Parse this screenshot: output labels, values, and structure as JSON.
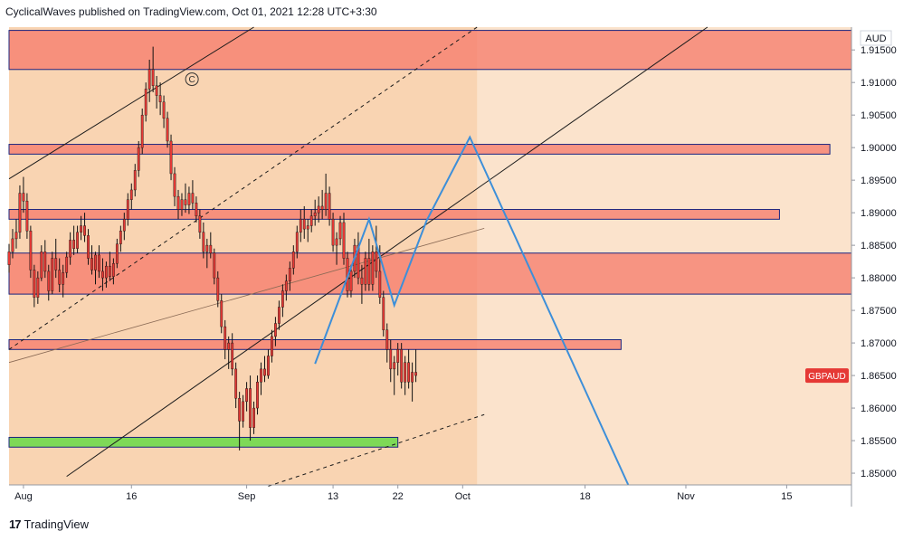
{
  "header": {
    "text": "CyclicalWaves published on TradingView.com, Oct 01, 2021 12:28 UTC+3:30"
  },
  "footer": {
    "brand": "TradingView",
    "logo_glyph": "17"
  },
  "chart_data": {
    "type": "candlestick",
    "symbol": "GBPAUD",
    "currency": "AUD",
    "y_ticks": [
      "1.91500",
      "1.91000",
      "1.90500",
      "1.90000",
      "1.89500",
      "1.89000",
      "1.88500",
      "1.88000",
      "1.87500",
      "1.87000",
      "1.86500",
      "1.86000",
      "1.85500",
      "1.85000"
    ],
    "ylim": [
      1.8482,
      1.9185
    ],
    "x_ticks": [
      {
        "label": "Aug",
        "day": 0
      },
      {
        "label": "16",
        "day": 15
      },
      {
        "label": "Sep",
        "day": 31
      },
      {
        "label": "13",
        "day": 43
      },
      {
        "label": "22",
        "day": 52
      },
      {
        "label": "Oct",
        "day": 61
      },
      {
        "label": "18",
        "day": 78
      },
      {
        "label": "Nov",
        "day": 92
      },
      {
        "label": "15",
        "day": 106
      }
    ],
    "day_range": [
      -2,
      115
    ],
    "colors": {
      "background": "#fbe3cc",
      "projection_area": "#f7c89d",
      "zone_red": "#f57a6a",
      "zone_border": "#1a237e",
      "support_green": "#7ed957",
      "pattern_blue": "#3d8fd9",
      "candle": "#e53935",
      "wick": "#111111",
      "label_bg": "#e53935"
    },
    "zones": [
      {
        "y1": 1.912,
        "y2": 1.918,
        "d1": -2,
        "d2": 115
      },
      {
        "y1": 1.899,
        "y2": 1.9005,
        "d1": -2,
        "d2": 112
      },
      {
        "y1": 1.889,
        "y2": 1.8905,
        "d1": -2,
        "d2": 105
      },
      {
        "y1": 1.8775,
        "y2": 1.8838,
        "d1": -2,
        "d2": 115
      },
      {
        "y1": 1.869,
        "y2": 1.8705,
        "d1": -2,
        "d2": 83
      }
    ],
    "support": {
      "y1": 1.854,
      "y2": 1.8555,
      "d1": -2,
      "d2": 52
    },
    "channel_lines": [
      {
        "d1": -2,
        "y1": 1.8952,
        "d2": 32,
        "y2": 1.9185,
        "dash": false
      },
      {
        "d1": 6,
        "y1": 1.8495,
        "d2": 95,
        "y2": 1.9185,
        "dash": false
      },
      {
        "d1": -2,
        "y1": 1.869,
        "d2": 63,
        "y2": 1.9185,
        "dash": true
      },
      {
        "d1": 34,
        "y1": 1.848,
        "d2": 64,
        "y2": 1.859,
        "dash": true
      },
      {
        "d1": -2,
        "y1": 1.867,
        "d2": 64,
        "y2": 1.8876,
        "dash": false,
        "thin": true
      }
    ],
    "pattern_path": [
      {
        "day": 40.5,
        "y": 1.8668
      },
      {
        "day": 48,
        "y": 1.889
      },
      {
        "day": 51.5,
        "y": 1.8758
      },
      {
        "day": 56,
        "y": 1.8888
      },
      {
        "day": 62,
        "y": 1.9016
      },
      {
        "day": 84,
        "y": 1.8482
      }
    ],
    "wave_label": {
      "text": "C",
      "day": 23.4,
      "y": 1.9105
    },
    "close": 1.865,
    "ohlc": [
      [
        -2,
        1.882,
        1.8852,
        1.8808,
        1.884
      ],
      [
        -1.5,
        1.884,
        1.8875,
        1.883,
        1.886
      ],
      [
        -1,
        1.886,
        1.889,
        1.8845,
        1.887
      ],
      [
        -0.5,
        1.887,
        1.8942,
        1.886,
        1.893
      ],
      [
        0,
        1.893,
        1.8955,
        1.89,
        1.8918
      ],
      [
        0.5,
        1.8918,
        1.893,
        1.886,
        1.8872
      ],
      [
        1,
        1.8872,
        1.888,
        1.88,
        1.8812
      ],
      [
        1.5,
        1.8812,
        1.882,
        1.8755,
        1.877
      ],
      [
        2,
        1.877,
        1.881,
        1.876,
        1.88
      ],
      [
        2.5,
        1.88,
        1.885,
        1.8795,
        1.884
      ],
      [
        3,
        1.884,
        1.8858,
        1.88,
        1.881
      ],
      [
        3.5,
        1.881,
        1.882,
        1.8765,
        1.878
      ],
      [
        4,
        1.878,
        1.884,
        1.8775,
        1.883
      ],
      [
        4.5,
        1.883,
        1.886,
        1.88,
        1.8812
      ],
      [
        5,
        1.8812,
        1.883,
        1.8778,
        1.879
      ],
      [
        5.5,
        1.879,
        1.882,
        1.877,
        1.8808
      ],
      [
        6,
        1.8808,
        1.884,
        1.88,
        1.8832
      ],
      [
        6.5,
        1.8832,
        1.887,
        1.882,
        1.8858
      ],
      [
        7,
        1.8858,
        1.888,
        1.8835,
        1.8845
      ],
      [
        7.5,
        1.8845,
        1.888,
        1.8838,
        1.887
      ],
      [
        8,
        1.887,
        1.8895,
        1.8858,
        1.888
      ],
      [
        8.5,
        1.888,
        1.89,
        1.8855,
        1.8865
      ],
      [
        9,
        1.8865,
        1.8875,
        1.882,
        1.883
      ],
      [
        9.5,
        1.883,
        1.885,
        1.8805,
        1.8812
      ],
      [
        10,
        1.8812,
        1.884,
        1.879,
        1.8835
      ],
      [
        10.5,
        1.8835,
        1.885,
        1.88,
        1.881
      ],
      [
        11,
        1.881,
        1.883,
        1.878,
        1.88
      ],
      [
        11.5,
        1.88,
        1.8825,
        1.8785,
        1.8818
      ],
      [
        12,
        1.8818,
        1.884,
        1.8795,
        1.8802
      ],
      [
        12.5,
        1.8802,
        1.883,
        1.879,
        1.8822
      ],
      [
        13,
        1.8822,
        1.886,
        1.8815,
        1.8852
      ],
      [
        13.5,
        1.8852,
        1.888,
        1.884,
        1.8872
      ],
      [
        14,
        1.8872,
        1.89,
        1.8858,
        1.889
      ],
      [
        14.5,
        1.889,
        1.893,
        1.888,
        1.892
      ],
      [
        15,
        1.892,
        1.8945,
        1.8905,
        1.8935
      ],
      [
        15.5,
        1.8935,
        1.8975,
        1.8925,
        1.8965
      ],
      [
        16,
        1.8965,
        1.901,
        1.8955,
        1.9
      ],
      [
        16.5,
        1.9,
        1.906,
        1.899,
        1.905
      ],
      [
        17,
        1.905,
        1.91,
        1.904,
        1.909
      ],
      [
        17.5,
        1.909,
        1.9135,
        1.907,
        1.912
      ],
      [
        18,
        1.912,
        1.9155,
        1.9085,
        1.9095
      ],
      [
        18.5,
        1.9095,
        1.911,
        1.906,
        1.908
      ],
      [
        19,
        1.908,
        1.91,
        1.905,
        1.907
      ],
      [
        19.5,
        1.907,
        1.908,
        1.903,
        1.9045
      ],
      [
        20,
        1.9045,
        1.9055,
        1.9,
        1.901
      ],
      [
        20.5,
        1.901,
        1.902,
        1.895,
        1.896
      ],
      [
        21,
        1.896,
        1.897,
        1.891,
        1.8925
      ],
      [
        21.5,
        1.8925,
        1.8935,
        1.889,
        1.8905
      ],
      [
        22,
        1.8905,
        1.893,
        1.8895,
        1.892
      ],
      [
        22.5,
        1.892,
        1.8945,
        1.89,
        1.8912
      ],
      [
        23,
        1.8912,
        1.894,
        1.8898,
        1.893
      ],
      [
        23.5,
        1.893,
        1.895,
        1.8905,
        1.8915
      ],
      [
        24,
        1.8915,
        1.8925,
        1.8885,
        1.8895
      ],
      [
        24.5,
        1.8895,
        1.8905,
        1.886,
        1.887
      ],
      [
        25,
        1.887,
        1.8885,
        1.883,
        1.884
      ],
      [
        25.5,
        1.884,
        1.886,
        1.8815,
        1.885
      ],
      [
        26,
        1.885,
        1.887,
        1.883,
        1.8838
      ],
      [
        26.5,
        1.8838,
        1.8845,
        1.879,
        1.88
      ],
      [
        27,
        1.88,
        1.881,
        1.8755,
        1.8765
      ],
      [
        27.5,
        1.8765,
        1.8775,
        1.8715,
        1.8725
      ],
      [
        28,
        1.8725,
        1.8735,
        1.8675,
        1.869
      ],
      [
        28.5,
        1.869,
        1.871,
        1.866,
        1.87
      ],
      [
        29,
        1.87,
        1.8715,
        1.865,
        1.866
      ],
      [
        29.5,
        1.866,
        1.867,
        1.86,
        1.8615
      ],
      [
        30,
        1.8615,
        1.8625,
        1.8535,
        1.858
      ],
      [
        30.5,
        1.858,
        1.862,
        1.857,
        1.861
      ],
      [
        31,
        1.861,
        1.864,
        1.8595,
        1.863
      ],
      [
        31.5,
        1.863,
        1.865,
        1.855,
        1.857
      ],
      [
        32,
        1.857,
        1.861,
        1.856,
        1.86
      ],
      [
        32.5,
        1.86,
        1.865,
        1.859,
        1.864
      ],
      [
        33,
        1.864,
        1.867,
        1.862,
        1.866
      ],
      [
        33.5,
        1.866,
        1.868,
        1.864,
        1.865
      ],
      [
        34,
        1.865,
        1.869,
        1.8645,
        1.868
      ],
      [
        34.5,
        1.868,
        1.872,
        1.867,
        1.871
      ],
      [
        35,
        1.871,
        1.874,
        1.8695,
        1.873
      ],
      [
        35.5,
        1.873,
        1.8765,
        1.872,
        1.8755
      ],
      [
        36,
        1.8755,
        1.879,
        1.874,
        1.878
      ],
      [
        36.5,
        1.878,
        1.8805,
        1.8765,
        1.8795
      ],
      [
        37,
        1.8795,
        1.8825,
        1.878,
        1.8815
      ],
      [
        37.5,
        1.8815,
        1.885,
        1.8805,
        1.884
      ],
      [
        38,
        1.884,
        1.888,
        1.883,
        1.887
      ],
      [
        38.5,
        1.887,
        1.8905,
        1.8855,
        1.889
      ],
      [
        39,
        1.889,
        1.891,
        1.886,
        1.8875
      ],
      [
        39.5,
        1.8875,
        1.889,
        1.8855,
        1.888
      ],
      [
        40,
        1.888,
        1.8905,
        1.887,
        1.8895
      ],
      [
        40.5,
        1.8895,
        1.892,
        1.888,
        1.89
      ],
      [
        41,
        1.89,
        1.8925,
        1.8885,
        1.891
      ],
      [
        41.5,
        1.891,
        1.8935,
        1.889,
        1.8905
      ],
      [
        42,
        1.8905,
        1.896,
        1.8895,
        1.893
      ],
      [
        42.5,
        1.893,
        1.894,
        1.888,
        1.889
      ],
      [
        43,
        1.889,
        1.89,
        1.884,
        1.885
      ],
      [
        43.5,
        1.885,
        1.887,
        1.882,
        1.886
      ],
      [
        44,
        1.886,
        1.8895,
        1.885,
        1.8885
      ],
      [
        44.5,
        1.8885,
        1.89,
        1.882,
        1.883
      ],
      [
        45,
        1.883,
        1.884,
        1.877,
        1.878
      ],
      [
        45.5,
        1.878,
        1.882,
        1.877,
        1.881
      ],
      [
        46,
        1.881,
        1.886,
        1.88,
        1.885
      ],
      [
        46.5,
        1.885,
        1.887,
        1.879,
        1.88
      ],
      [
        47,
        1.88,
        1.882,
        1.876,
        1.879
      ],
      [
        47.5,
        1.879,
        1.884,
        1.878,
        1.883
      ],
      [
        48,
        1.883,
        1.886,
        1.878,
        1.879
      ],
      [
        48.5,
        1.879,
        1.885,
        1.878,
        1.884
      ],
      [
        49,
        1.884,
        1.888,
        1.88,
        1.881
      ],
      [
        49.5,
        1.881,
        1.885,
        1.876,
        1.877
      ],
      [
        50,
        1.877,
        1.878,
        1.871,
        1.872
      ],
      [
        50.5,
        1.872,
        1.873,
        1.867,
        1.869
      ],
      [
        51,
        1.869,
        1.8705,
        1.864,
        1.866
      ],
      [
        51.5,
        1.866,
        1.868,
        1.862,
        1.867
      ],
      [
        52,
        1.867,
        1.87,
        1.865,
        1.869
      ],
      [
        52.5,
        1.869,
        1.87,
        1.863,
        1.864
      ],
      [
        53,
        1.864,
        1.868,
        1.862,
        1.867
      ],
      [
        53.5,
        1.867,
        1.869,
        1.863,
        1.864
      ],
      [
        54,
        1.864,
        1.867,
        1.861,
        1.8655
      ],
      [
        54.5,
        1.8655,
        1.869,
        1.864,
        1.865
      ]
    ]
  }
}
